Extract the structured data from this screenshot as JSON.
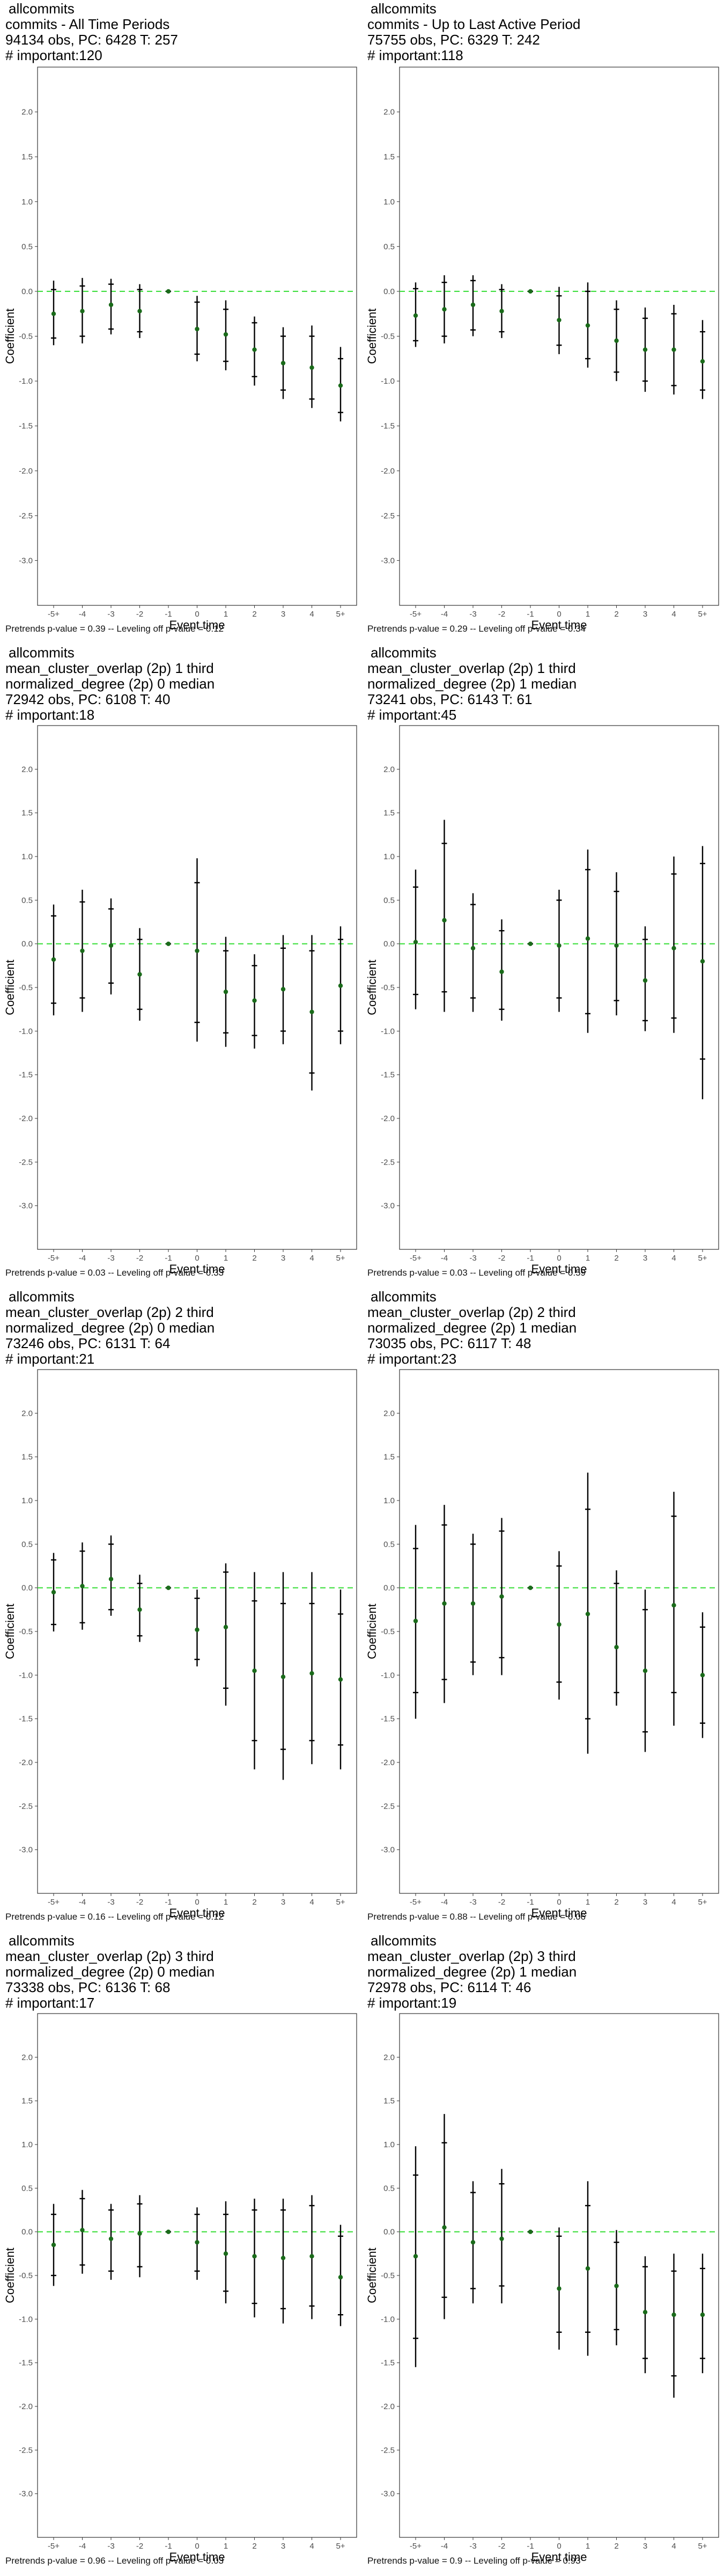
{
  "chart_data": [
    {
      "type": "scatter",
      "title_lines": [
        "allcommits",
        "commits - All Time Periods",
        "94134 obs, PC: 6428 T: 257",
        "# important:120"
      ],
      "caption": "Pretrends p-value = 0.39 -- Leveling off p-value = 0.12",
      "xlabel": "Event time",
      "ylabel": "Coefficient",
      "categories": [
        "-5+",
        "-4",
        "-3",
        "-2",
        "-1",
        "0",
        "1",
        "2",
        "3",
        "4",
        "5+"
      ],
      "ylim": [
        -3.5,
        2.5
      ],
      "yticks": [
        2.0,
        1.5,
        1.0,
        0.5,
        0.0,
        -0.5,
        -1.0,
        -1.5,
        -2.0,
        -2.5,
        -3.0
      ],
      "estimate": [
        -0.25,
        -0.22,
        -0.15,
        -0.22,
        0.0,
        -0.42,
        -0.48,
        -0.65,
        -0.8,
        -0.85,
        -1.05
      ],
      "ci95_low": [
        -0.6,
        -0.58,
        -0.48,
        -0.52,
        0.0,
        -0.78,
        -0.88,
        -1.05,
        -1.2,
        -1.3,
        -1.45
      ],
      "ci95_high": [
        0.12,
        0.15,
        0.14,
        0.08,
        0.0,
        -0.05,
        -0.1,
        -0.28,
        -0.4,
        -0.38,
        -0.62
      ],
      "ci90_low": [
        -0.52,
        -0.5,
        -0.42,
        -0.45,
        0.0,
        -0.7,
        -0.78,
        -0.95,
        -1.1,
        -1.2,
        -1.35
      ],
      "ci90_high": [
        0.02,
        0.06,
        0.08,
        0.02,
        0.0,
        -0.12,
        -0.2,
        -0.35,
        -0.5,
        -0.5,
        -0.75
      ]
    },
    {
      "type": "scatter",
      "title_lines": [
        "allcommits",
        "commits - Up to Last Active Period",
        "75755 obs, PC: 6329 T: 242",
        "# important:118"
      ],
      "caption": "Pretrends p-value = 0.29 -- Leveling off p-value = 0.34",
      "xlabel": "Event time",
      "ylabel": "Coefficient",
      "categories": [
        "-5+",
        "-4",
        "-3",
        "-2",
        "-1",
        "0",
        "1",
        "2",
        "3",
        "4",
        "5+"
      ],
      "ylim": [
        -3.5,
        2.5
      ],
      "yticks": [
        2.0,
        1.5,
        1.0,
        0.5,
        0.0,
        -0.5,
        -1.0,
        -1.5,
        -2.0,
        -2.5,
        -3.0
      ],
      "estimate": [
        -0.27,
        -0.2,
        -0.15,
        -0.22,
        0.0,
        -0.32,
        -0.38,
        -0.55,
        -0.65,
        -0.65,
        -0.78
      ],
      "ci95_low": [
        -0.62,
        -0.58,
        -0.5,
        -0.52,
        0.0,
        -0.7,
        -0.85,
        -1.0,
        -1.12,
        -1.15,
        -1.2
      ],
      "ci95_high": [
        0.1,
        0.18,
        0.18,
        0.08,
        0.0,
        0.05,
        0.1,
        -0.1,
        -0.18,
        -0.15,
        -0.32
      ],
      "ci90_low": [
        -0.55,
        -0.5,
        -0.43,
        -0.45,
        0.0,
        -0.6,
        -0.75,
        -0.9,
        -1.0,
        -1.05,
        -1.1
      ],
      "ci90_high": [
        0.03,
        0.1,
        0.12,
        0.02,
        0.0,
        -0.05,
        0.0,
        -0.2,
        -0.3,
        -0.25,
        -0.45
      ]
    },
    {
      "type": "scatter",
      "title_lines": [
        "allcommits",
        "mean_cluster_overlap (2p) 1 third",
        "normalized_degree (2p) 0 median",
        "72942 obs, PC: 6108 T: 40",
        "# important:18"
      ],
      "caption": "Pretrends p-value = 0.03 -- Leveling off p-value = 0.33",
      "xlabel": "Event time",
      "ylabel": "Coefficient",
      "categories": [
        "-5+",
        "-4",
        "-3",
        "-2",
        "-1",
        "0",
        "1",
        "2",
        "3",
        "4",
        "5+"
      ],
      "ylim": [
        -3.5,
        2.5
      ],
      "yticks": [
        2.0,
        1.5,
        1.0,
        0.5,
        0.0,
        -0.5,
        -1.0,
        -1.5,
        -2.0,
        -2.5,
        -3.0
      ],
      "estimate": [
        -0.18,
        -0.08,
        -0.02,
        -0.35,
        0.0,
        -0.08,
        -0.55,
        -0.65,
        -0.52,
        -0.78,
        -0.48
      ],
      "ci95_low": [
        -0.82,
        -0.78,
        -0.58,
        -0.88,
        0.0,
        -1.12,
        -1.18,
        -1.2,
        -1.15,
        -1.68,
        -1.15
      ],
      "ci95_high": [
        0.45,
        0.62,
        0.52,
        0.18,
        0.0,
        0.98,
        0.08,
        -0.12,
        0.1,
        0.1,
        0.2
      ],
      "ci90_low": [
        -0.68,
        -0.62,
        -0.45,
        -0.75,
        0.0,
        -0.9,
        -1.02,
        -1.05,
        -1.0,
        -1.48,
        -1.0
      ],
      "ci90_high": [
        0.32,
        0.48,
        0.4,
        0.05,
        0.0,
        0.7,
        -0.08,
        -0.25,
        -0.05,
        -0.08,
        0.05
      ]
    },
    {
      "type": "scatter",
      "title_lines": [
        "allcommits",
        "mean_cluster_overlap (2p) 1 third",
        "normalized_degree (2p) 1 median",
        "73241 obs, PC: 6143 T: 61",
        "# important:45"
      ],
      "caption": "Pretrends p-value = 0.03 -- Leveling off p-value = 0.59",
      "xlabel": "Event time",
      "ylabel": "Coefficient",
      "categories": [
        "-5+",
        "-4",
        "-3",
        "-2",
        "-1",
        "0",
        "1",
        "2",
        "3",
        "4",
        "5+"
      ],
      "ylim": [
        -3.5,
        2.5
      ],
      "yticks": [
        2.0,
        1.5,
        1.0,
        0.5,
        0.0,
        -0.5,
        -1.0,
        -1.5,
        -2.0,
        -2.5,
        -3.0
      ],
      "estimate": [
        0.02,
        0.27,
        -0.05,
        -0.32,
        0.0,
        -0.02,
        0.06,
        -0.02,
        -0.42,
        -0.05,
        -0.2
      ],
      "ci95_low": [
        -0.75,
        -0.78,
        -0.78,
        -0.88,
        0.0,
        -0.78,
        -1.02,
        -0.82,
        -1.0,
        -1.02,
        -1.78
      ],
      "ci95_high": [
        0.85,
        1.42,
        0.58,
        0.28,
        0.0,
        0.62,
        1.08,
        0.82,
        0.2,
        1.0,
        1.12
      ],
      "ci90_low": [
        -0.58,
        -0.55,
        -0.62,
        -0.75,
        0.0,
        -0.62,
        -0.8,
        -0.65,
        -0.88,
        -0.85,
        -1.32
      ],
      "ci90_high": [
        0.65,
        1.15,
        0.45,
        0.15,
        0.0,
        0.5,
        0.85,
        0.6,
        0.05,
        0.8,
        0.92
      ]
    },
    {
      "type": "scatter",
      "title_lines": [
        "allcommits",
        "mean_cluster_overlap (2p) 2 third",
        "normalized_degree (2p) 0 median",
        "73246 obs, PC: 6131 T: 64",
        "# important:21"
      ],
      "caption": "Pretrends p-value = 0.16 -- Leveling off p-value = 0.12",
      "xlabel": "Event time",
      "ylabel": "Coefficient",
      "categories": [
        "-5+",
        "-4",
        "-3",
        "-2",
        "-1",
        "0",
        "1",
        "2",
        "3",
        "4",
        "5+"
      ],
      "ylim": [
        -3.5,
        2.5
      ],
      "yticks": [
        2.0,
        1.5,
        1.0,
        0.5,
        0.0,
        -0.5,
        -1.0,
        -1.5,
        -2.0,
        -2.5,
        -3.0
      ],
      "estimate": [
        -0.05,
        0.02,
        0.1,
        -0.25,
        0.0,
        -0.48,
        -0.45,
        -0.95,
        -1.02,
        -0.98,
        -1.05
      ],
      "ci95_low": [
        -0.5,
        -0.48,
        -0.32,
        -0.62,
        0.0,
        -0.9,
        -1.35,
        -2.08,
        -2.2,
        -2.02,
        -2.08
      ],
      "ci95_high": [
        0.4,
        0.52,
        0.6,
        0.15,
        0.0,
        -0.02,
        0.28,
        0.18,
        0.18,
        0.18,
        -0.02
      ],
      "ci90_low": [
        -0.42,
        -0.4,
        -0.25,
        -0.55,
        0.0,
        -0.82,
        -1.15,
        -1.75,
        -1.85,
        -1.75,
        -1.8
      ],
      "ci90_high": [
        0.32,
        0.42,
        0.5,
        0.05,
        0.0,
        -0.12,
        0.18,
        -0.15,
        -0.18,
        -0.18,
        -0.3
      ]
    },
    {
      "type": "scatter",
      "title_lines": [
        "allcommits",
        "mean_cluster_overlap (2p) 2 third",
        "normalized_degree (2p) 1 median",
        "73035 obs, PC: 6117 T: 48",
        "# important:23"
      ],
      "caption": "Pretrends p-value = 0.88 -- Leveling off p-value = 0.06",
      "xlabel": "Event time",
      "ylabel": "Coefficient",
      "categories": [
        "-5+",
        "-4",
        "-3",
        "-2",
        "-1",
        "0",
        "1",
        "2",
        "3",
        "4",
        "5+"
      ],
      "ylim": [
        -3.5,
        2.5
      ],
      "yticks": [
        2.0,
        1.5,
        1.0,
        0.5,
        0.0,
        -0.5,
        -1.0,
        -1.5,
        -2.0,
        -2.5,
        -3.0
      ],
      "estimate": [
        -0.38,
        -0.18,
        -0.18,
        -0.1,
        0.0,
        -0.42,
        -0.3,
        -0.68,
        -0.95,
        -0.2,
        -1.0
      ],
      "ci95_low": [
        -1.5,
        -1.32,
        -1.0,
        -1.0,
        0.0,
        -1.28,
        -1.9,
        -1.35,
        -1.88,
        -1.58,
        -1.72
      ],
      "ci95_high": [
        0.72,
        0.95,
        0.62,
        0.8,
        0.0,
        0.42,
        1.32,
        0.2,
        -0.02,
        1.1,
        -0.28
      ],
      "ci90_low": [
        -1.2,
        -1.05,
        -0.85,
        -0.8,
        0.0,
        -1.08,
        -1.5,
        -1.2,
        -1.65,
        -1.2,
        -1.55
      ],
      "ci90_high": [
        0.45,
        0.72,
        0.5,
        0.65,
        0.0,
        0.25,
        0.9,
        0.05,
        -0.25,
        0.82,
        -0.45
      ]
    },
    {
      "type": "scatter",
      "title_lines": [
        "allcommits",
        "mean_cluster_overlap (2p) 3 third",
        "normalized_degree (2p) 0 median",
        "73338 obs, PC: 6136 T: 68",
        "# important:17"
      ],
      "caption": "Pretrends p-value = 0.96 -- Leveling off p-value = 0.03",
      "xlabel": "Event time",
      "ylabel": "Coefficient",
      "categories": [
        "-5+",
        "-4",
        "-3",
        "-2",
        "-1",
        "0",
        "1",
        "2",
        "3",
        "4",
        "5+"
      ],
      "ylim": [
        -3.5,
        2.5
      ],
      "yticks": [
        2.0,
        1.5,
        1.0,
        0.5,
        0.0,
        -0.5,
        -1.0,
        -1.5,
        -2.0,
        -2.5,
        -3.0
      ],
      "estimate": [
        -0.15,
        0.02,
        -0.08,
        -0.02,
        0.0,
        -0.12,
        -0.25,
        -0.28,
        -0.3,
        -0.28,
        -0.52
      ],
      "ci95_low": [
        -0.62,
        -0.48,
        -0.55,
        -0.52,
        0.0,
        -0.55,
        -0.82,
        -0.98,
        -1.05,
        -1.0,
        -1.08
      ],
      "ci95_high": [
        0.32,
        0.48,
        0.32,
        0.42,
        0.0,
        0.28,
        0.35,
        0.38,
        0.38,
        0.42,
        0.08
      ],
      "ci90_low": [
        -0.5,
        -0.38,
        -0.45,
        -0.4,
        0.0,
        -0.45,
        -0.68,
        -0.82,
        -0.88,
        -0.85,
        -0.95
      ],
      "ci90_high": [
        0.2,
        0.38,
        0.25,
        0.32,
        0.0,
        0.2,
        0.2,
        0.25,
        0.25,
        0.3,
        -0.05
      ]
    },
    {
      "type": "scatter",
      "title_lines": [
        "allcommits",
        "mean_cluster_overlap (2p) 3 third",
        "normalized_degree (2p) 1 median",
        "72978 obs, PC: 6114 T: 46",
        "# important:19"
      ],
      "caption": "Pretrends p-value = 0.9 -- Leveling off p-value = 0.93",
      "xlabel": "Event time",
      "ylabel": "Coefficient",
      "categories": [
        "-5+",
        "-4",
        "-3",
        "-2",
        "-1",
        "0",
        "1",
        "2",
        "3",
        "4",
        "5+"
      ],
      "ylim": [
        -3.5,
        2.5
      ],
      "yticks": [
        2.0,
        1.5,
        1.0,
        0.5,
        0.0,
        -0.5,
        -1.0,
        -1.5,
        -2.0,
        -2.5,
        -3.0
      ],
      "estimate": [
        -0.28,
        0.05,
        -0.12,
        -0.08,
        0.0,
        -0.65,
        -0.42,
        -0.62,
        -0.92,
        -0.95,
        -0.95
      ],
      "ci95_low": [
        -1.55,
        -1.0,
        -0.82,
        -0.82,
        0.0,
        -1.35,
        -1.42,
        -1.3,
        -1.62,
        -1.9,
        -1.62
      ],
      "ci95_high": [
        0.98,
        1.35,
        0.58,
        0.72,
        0.0,
        0.05,
        0.58,
        0.02,
        -0.28,
        -0.25,
        -0.25
      ],
      "ci90_low": [
        -1.22,
        -0.75,
        -0.65,
        -0.62,
        0.0,
        -1.15,
        -1.15,
        -1.12,
        -1.45,
        -1.65,
        -1.45
      ],
      "ci90_high": [
        0.65,
        1.02,
        0.45,
        0.55,
        0.0,
        -0.05,
        0.3,
        -0.12,
        -0.4,
        -0.45,
        -0.42
      ]
    }
  ]
}
